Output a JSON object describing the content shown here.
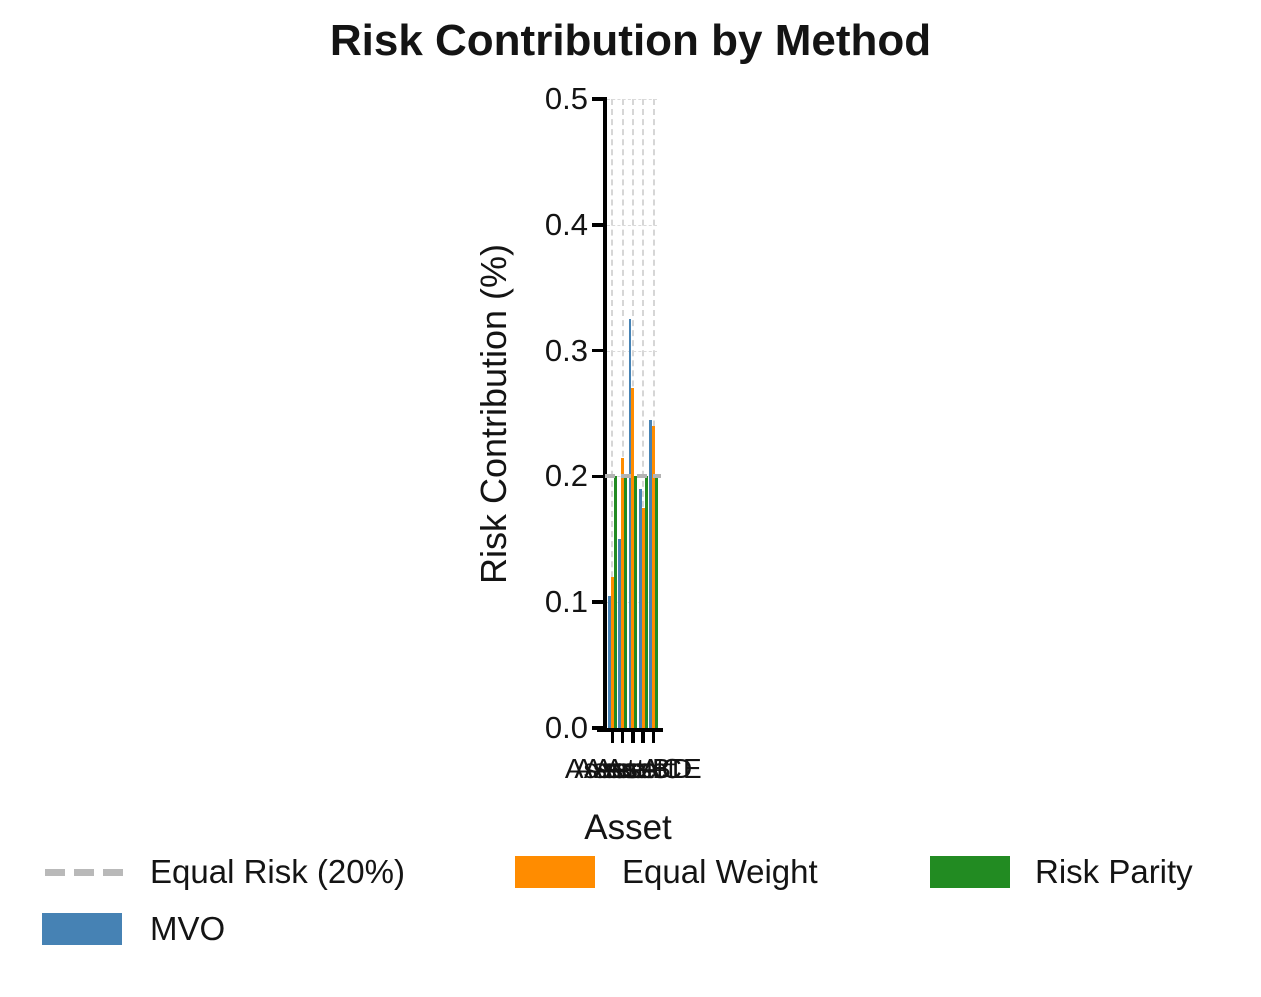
{
  "title": "Risk Contribution by Method",
  "chart_data": {
    "type": "bar",
    "title": "Risk Contribution by Method",
    "xlabel": "Asset",
    "ylabel": "Risk Contribution (%)",
    "categories": [
      "Asset A",
      "Asset B",
      "Asset C",
      "Asset D",
      "Asset E"
    ],
    "series": [
      {
        "name": "MVO",
        "color": "#4682b4",
        "values": [
          0.105,
          0.15,
          0.325,
          0.19,
          0.245
        ]
      },
      {
        "name": "Equal Weight",
        "color": "#ff8c00",
        "values": [
          0.12,
          0.215,
          0.27,
          0.175,
          0.24
        ]
      },
      {
        "name": "Risk Parity",
        "color": "#228b22",
        "values": [
          0.2,
          0.2,
          0.2,
          0.2,
          0.2
        ]
      }
    ],
    "reference_line": {
      "label": "Equal Risk (20%)",
      "value": 0.2,
      "color": "#b3b3b3",
      "style": "dashed"
    },
    "ylim": [
      0,
      0.5
    ],
    "yticks": [
      "0.0",
      "0.1",
      "0.2",
      "0.3",
      "0.4",
      "0.5"
    ],
    "grid": true,
    "legend_position": "bottom"
  },
  "legend": {
    "items": [
      {
        "label": "Equal Risk (20%)",
        "swatch": "dashed-line",
        "color": "#b9b9b9"
      },
      {
        "label": "Equal Weight",
        "swatch": "rect",
        "color": "#ff8c00"
      },
      {
        "label": "Risk Parity",
        "swatch": "rect",
        "color": "#228b22"
      },
      {
        "label": "MVO",
        "swatch": "rect",
        "color": "#4682b4"
      }
    ]
  }
}
